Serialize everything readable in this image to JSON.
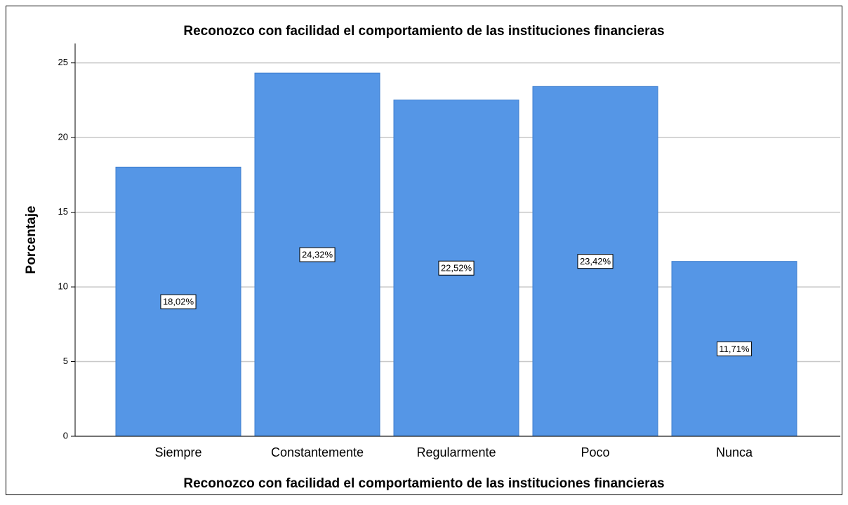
{
  "chart_data": {
    "type": "bar",
    "title": "Reconozco con facilidad el comportamiento de las instituciones financieras",
    "x_label": "Reconozco con facilidad el comportamiento de las instituciones financieras",
    "y_label": "Porcentaje",
    "categories": [
      "Siempre",
      "Constantemente",
      "Regularmente",
      "Poco",
      "Nunca"
    ],
    "values": [
      18.02,
      24.32,
      22.52,
      23.42,
      11.71
    ],
    "value_labels": [
      "18,02%",
      "24,32%",
      "22,52%",
      "23,42%",
      "11,71%"
    ],
    "color": "#5596e6",
    "ylim": [
      0,
      26.3
    ],
    "yticks": [
      0,
      5,
      10,
      15,
      20,
      25
    ],
    "grid": true
  }
}
